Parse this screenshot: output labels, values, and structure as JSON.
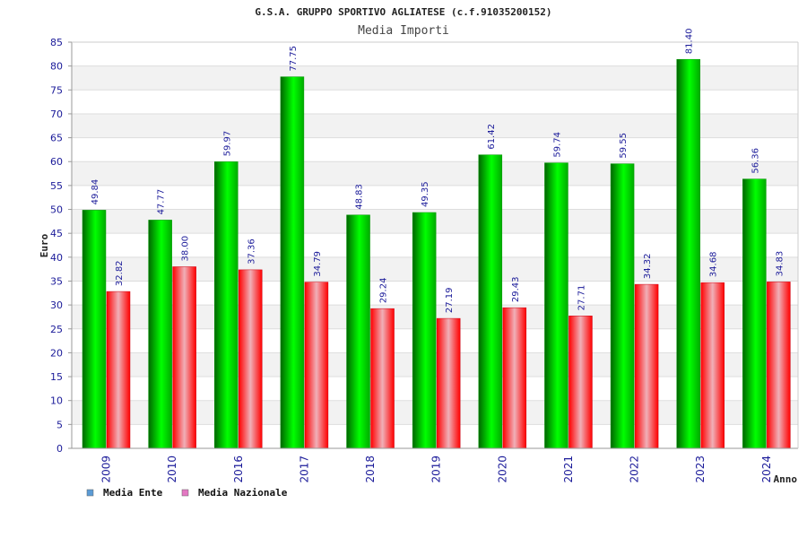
{
  "chart_data": {
    "type": "bar",
    "title": "G.S.A. GRUPPO SPORTIVO AGLIATESE (c.f.91035200152)",
    "subtitle": "Media Importi",
    "xlabel": "Anno",
    "ylabel": "Euro",
    "ylim": [
      0,
      85
    ],
    "yticks": [
      0,
      5,
      10,
      15,
      20,
      25,
      30,
      35,
      40,
      45,
      50,
      55,
      60,
      65,
      70,
      75,
      80,
      85
    ],
    "categories": [
      "2009",
      "2010",
      "2016",
      "2017",
      "2018",
      "2019",
      "2020",
      "2021",
      "2022",
      "2023",
      "2024"
    ],
    "series": [
      {
        "name": "Media Ente",
        "legend_color": "#5b9bd5",
        "color": "#00cc00",
        "values": [
          49.84,
          47.77,
          59.97,
          77.75,
          48.83,
          49.35,
          61.42,
          59.74,
          59.55,
          81.4,
          56.36
        ],
        "labels": [
          "49.84",
          "47.77",
          "59.97",
          "77.75",
          "48.83",
          "49.35",
          "61.42",
          "59.74",
          "59.55",
          "81.40",
          "56.36"
        ]
      },
      {
        "name": "Media Nazionale",
        "legend_color": "#e377c2",
        "color": "#ee1122",
        "values": [
          32.82,
          38.0,
          37.36,
          34.79,
          29.24,
          27.19,
          29.43,
          27.71,
          34.32,
          34.68,
          34.83
        ],
        "labels": [
          "32.82",
          "38.00",
          "37.36",
          "34.79",
          "29.24",
          "27.19",
          "29.43",
          "27.71",
          "34.32",
          "34.68",
          "34.83"
        ]
      }
    ],
    "grid": true,
    "legend": "bottom-left"
  }
}
